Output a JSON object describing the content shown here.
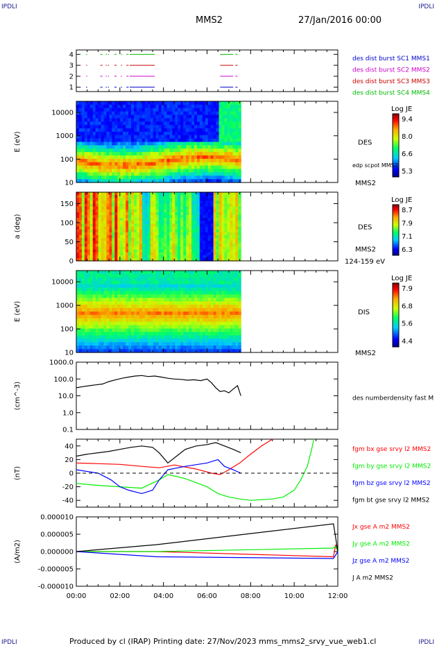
{
  "header": {
    "corner_left_top": "IPDLI",
    "corner_right_top": "IPDLI",
    "corner_left_bottom": "IPDLI",
    "corner_right_bottom": "IPDLI",
    "spacecraft": "MMS2",
    "date": "27/Jan/2016 00:00"
  },
  "footer": {
    "text": "Produced by cl (IRAP)   Printing date: 27/Nov/2023   mms_mms2_srvy_vue_web1.cl"
  },
  "colors": {
    "c1": "#0000cc",
    "c2": "#cc00cc",
    "c3": "#cc0000",
    "c4": "#00bb00",
    "bx": "#ff0000",
    "by": "#00ee00",
    "bz": "#0000ff",
    "bt": "#000000"
  },
  "chart_data": [
    {
      "type": "scatter",
      "name_key": "burst-availability",
      "yticks": [
        "1",
        "2",
        "3",
        "4"
      ],
      "ylim": [
        0.6,
        4.4
      ],
      "legend": [
        {
          "label": "des dist burst SC1 MMS1",
          "color": "#0000cc"
        },
        {
          "label": "des dist burst SC2 MMS2",
          "color": "#cc00cc"
        },
        {
          "label": "des dist burst SC3 MMS3",
          "color": "#cc0000"
        },
        {
          "label": "des dist burst SC4 MMS4",
          "color": "#00bb00"
        }
      ],
      "segments_hours": [
        [
          0.15,
          0.2
        ],
        [
          0.45,
          0.5
        ],
        [
          1.1,
          1.2
        ],
        [
          1.35,
          1.4
        ],
        [
          1.45,
          1.5
        ],
        [
          1.75,
          1.85
        ],
        [
          2.05,
          2.1
        ],
        [
          2.3,
          2.4
        ],
        [
          2.45,
          3.6
        ],
        [
          6.6,
          7.2
        ],
        [
          7.3,
          7.4
        ]
      ]
    },
    {
      "type": "heatmap",
      "name_key": "des-energy-spectrogram",
      "ylabel": "E (eV)",
      "yticks": [
        "10",
        "100",
        "1000",
        "10000"
      ],
      "ylim": [
        10,
        30000
      ],
      "right_label": "DES",
      "right_sub": "edp scpot MMS2",
      "bottom_right": "MMS2",
      "colorbar": {
        "title": "Log JE",
        "ticks": [
          "9.4",
          "8.0",
          "6.6",
          "5.3"
        ]
      },
      "data_end_hour": 7.55
    },
    {
      "type": "heatmap",
      "name_key": "des-pitch-angle",
      "ylabel": "a (deg)",
      "yticks": [
        "0",
        "50",
        "100",
        "150"
      ],
      "ylim": [
        0,
        180
      ],
      "right_label": "DES",
      "right_sub": "MMS2",
      "bottom_right": "124-159 eV",
      "colorbar": {
        "title": "Log JE",
        "ticks": [
          "8.7",
          "7.9",
          "7.1",
          "6.3"
        ]
      },
      "data_end_hour": 7.55
    },
    {
      "type": "heatmap",
      "name_key": "dis-energy-spectrogram",
      "ylabel": "E (eV)",
      "yticks": [
        "10",
        "100",
        "1000",
        "10000"
      ],
      "ylim": [
        10,
        30000
      ],
      "right_label": "DIS",
      "bottom_right": "MMS2",
      "colorbar": {
        "title": "Log JE",
        "ticks": [
          "7.9",
          "6.8",
          "5.6",
          "4.4"
        ]
      },
      "data_end_hour": 7.55
    },
    {
      "type": "line",
      "name_key": "density",
      "ylabel": "(cm^-3)",
      "yticks": [
        "0.1",
        "1.0",
        "10.0",
        "100.0",
        "1000.0"
      ],
      "ylim": [
        0.1,
        1000
      ],
      "scale": "log",
      "series": [
        {
          "name": "des numberdensity fast M",
          "color": "#000000",
          "x": [
            0,
            0.3,
            0.6,
            0.9,
            1.2,
            1.5,
            1.8,
            2.1,
            2.4,
            2.7,
            3.0,
            3.3,
            3.6,
            3.9,
            4.2,
            4.5,
            4.8,
            5.1,
            5.4,
            5.7,
            6.0,
            6.2,
            6.4,
            6.6,
            6.8,
            7.0,
            7.2,
            7.4,
            7.55
          ],
          "y": [
            30,
            35,
            40,
            45,
            50,
            70,
            90,
            110,
            130,
            150,
            160,
            140,
            150,
            130,
            110,
            100,
            95,
            85,
            90,
            80,
            100,
            60,
            30,
            18,
            20,
            15,
            25,
            40,
            10
          ]
        }
      ]
    },
    {
      "type": "line",
      "name_key": "magnetic-field",
      "ylabel": "(nT)",
      "yticks": [
        "-40",
        "-20",
        "0",
        "20",
        "40"
      ],
      "ylim": [
        -50,
        50
      ],
      "series": [
        {
          "name": "fgm bx gse srvy l2 MMS2",
          "color": "#ff0000",
          "x": [
            0,
            1,
            2,
            3,
            3.8,
            4.5,
            5.5,
            6.2,
            6.6,
            7.0,
            7.5,
            8.0,
            8.5,
            9.0
          ],
          "y": [
            15,
            14,
            13,
            10,
            8,
            12,
            6,
            0,
            -2,
            5,
            15,
            28,
            40,
            50
          ]
        },
        {
          "name": "fgm by gse srvy l2 MMS2",
          "color": "#00ee00",
          "x": [
            0,
            1,
            2,
            3,
            3.8,
            4.2,
            5,
            6,
            6.5,
            7,
            7.5,
            8,
            9,
            9.5,
            10,
            10.3,
            10.6,
            10.8,
            10.9
          ],
          "y": [
            -15,
            -18,
            -20,
            -22,
            -10,
            -2,
            -8,
            -20,
            -30,
            -35,
            -38,
            -40,
            -38,
            -35,
            -25,
            -10,
            10,
            35,
            50
          ]
        },
        {
          "name": "fgm bz gse srvy l2 MMS2",
          "color": "#0000ff",
          "x": [
            0,
            1,
            1.6,
            2,
            2.4,
            3,
            3.5,
            3.8,
            4.2,
            5,
            6,
            6.5,
            6.8,
            7.2,
            7.55
          ],
          "y": [
            5,
            0,
            -10,
            -20,
            -25,
            -30,
            -25,
            -10,
            5,
            10,
            15,
            20,
            10,
            5,
            0
          ]
        },
        {
          "name": "fgm bt gse srvy l2 MMS2",
          "color": "#000000",
          "x": [
            0,
            0.5,
            1,
            1.5,
            2,
            2.5,
            3,
            3.5,
            3.8,
            4.2,
            4.6,
            5.0,
            5.5,
            6.0,
            6.4,
            6.8,
            7.2,
            7.55
          ],
          "y": [
            25,
            28,
            30,
            32,
            35,
            38,
            40,
            38,
            30,
            15,
            25,
            35,
            40,
            42,
            45,
            40,
            35,
            30
          ]
        }
      ]
    },
    {
      "type": "line",
      "name_key": "current-density",
      "ylabel": "(A/m2)",
      "yticks": [
        "-0.000010",
        "-0.000005",
        "0.000000",
        "0.000005",
        "0.000010"
      ],
      "ylim": [
        -1e-05,
        1e-05
      ],
      "series": [
        {
          "name": "Jx gse A m2 MMS2",
          "color": "#ff0000",
          "x": [
            0,
            3.7,
            11.8,
            11.9,
            12
          ],
          "y": [
            0,
            0,
            -1.5e-06,
            2e-06,
            0
          ]
        },
        {
          "name": "Jy gse A m2 MMS2",
          "color": "#00ee00",
          "x": [
            0,
            3.7,
            11.8,
            11.9,
            12
          ],
          "y": [
            0,
            0,
            1e-06,
            1.5e-06,
            0
          ]
        },
        {
          "name": "Jz gse A m2 MMS2",
          "color": "#0000ff",
          "x": [
            0,
            3.7,
            11.8,
            11.9,
            12
          ],
          "y": [
            0,
            -1.5e-06,
            -2e-06,
            -1e-06,
            0
          ]
        },
        {
          "name": "J A m2 MMS2",
          "color": "#000000",
          "x": [
            0,
            3.7,
            11.8,
            11.9,
            12
          ],
          "y": [
            0,
            2e-06,
            8e-06,
            4e-06,
            0
          ]
        }
      ],
      "xticks": [
        "00:00",
        "02:00",
        "04:00",
        "06:00",
        "08:00",
        "10:00",
        "12:00"
      ],
      "xlim": [
        0,
        12
      ]
    }
  ]
}
